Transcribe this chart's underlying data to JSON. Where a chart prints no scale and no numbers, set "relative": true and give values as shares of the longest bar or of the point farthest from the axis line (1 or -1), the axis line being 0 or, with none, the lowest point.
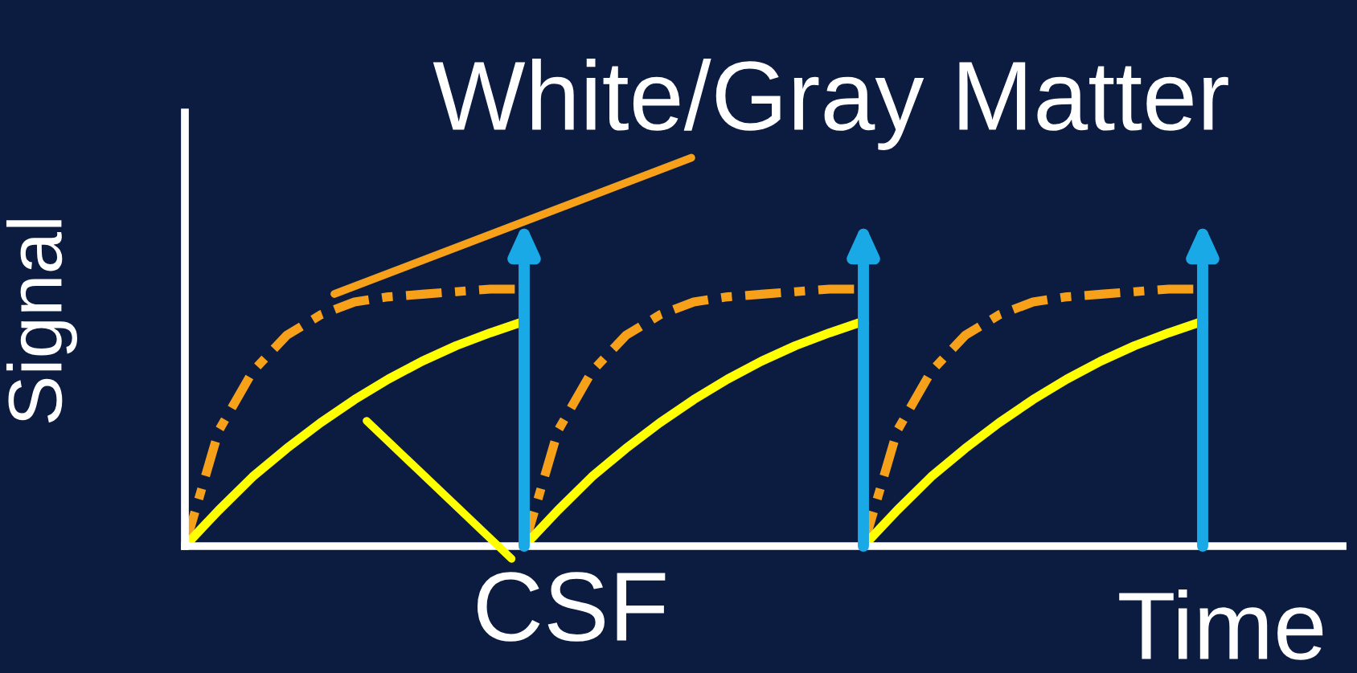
{
  "chart_data": {
    "type": "line",
    "relative": true,
    "xlabel": "Time",
    "ylabel": "Signal",
    "marker": "none",
    "categories": [
      null,
      null,
      null,
      null,
      null,
      null,
      null,
      null,
      null,
      null,
      null,
      null,
      null,
      null,
      null,
      null,
      null,
      null,
      null,
      null,
      null,
      null,
      null,
      null,
      null,
      null,
      null,
      null,
      null,
      null,
      null
    ],
    "series": [
      {
        "color": "#f7a019",
        "line_style": "dashed",
        "values": [
          0,
          0.45,
          0.68,
          0.82,
          0.9,
          0.95,
          0.97,
          0.98,
          0.99,
          1,
          1,
          null,
          null,
          null,
          null,
          null,
          null,
          null,
          null,
          null,
          null,
          null,
          null,
          null,
          null,
          null,
          null,
          null,
          null,
          null,
          null
        ]
      },
      {
        "color": "#f7a019",
        "line_style": "dashed",
        "values": [
          null,
          null,
          null,
          null,
          null,
          null,
          null,
          null,
          null,
          null,
          0,
          0.45,
          0.68,
          0.82,
          0.9,
          0.95,
          0.97,
          0.98,
          0.99,
          1,
          1,
          null,
          null,
          null,
          null,
          null,
          null,
          null,
          null,
          null,
          null
        ]
      },
      {
        "color": "#f7a019",
        "line_style": "dashed",
        "values": [
          null,
          null,
          null,
          null,
          null,
          null,
          null,
          null,
          null,
          null,
          null,
          null,
          null,
          null,
          null,
          null,
          null,
          null,
          null,
          null,
          0,
          0.45,
          0.68,
          0.82,
          0.9,
          0.95,
          0.97,
          0.98,
          0.99,
          1,
          1
        ]
      },
      {
        "color": "#ffff00",
        "line_style": "solid",
        "values": [
          0,
          0.14,
          0.27,
          0.38,
          0.48,
          0.57,
          0.65,
          0.72,
          0.78,
          0.83,
          0.875,
          null,
          null,
          null,
          null,
          null,
          null,
          null,
          null,
          null,
          null,
          null,
          null,
          null,
          null,
          null,
          null,
          null,
          null,
          null,
          null
        ]
      },
      {
        "color": "#ffff00",
        "line_style": "solid",
        "values": [
          null,
          null,
          null,
          null,
          null,
          null,
          null,
          null,
          null,
          null,
          0,
          0.14,
          0.27,
          0.38,
          0.48,
          0.57,
          0.65,
          0.72,
          0.78,
          0.83,
          0.875,
          null,
          null,
          null,
          null,
          null,
          null,
          null,
          null,
          null,
          null
        ]
      },
      {
        "color": "#ffff00",
        "line_style": "solid",
        "values": [
          null,
          null,
          null,
          null,
          null,
          null,
          null,
          null,
          null,
          null,
          null,
          null,
          null,
          null,
          null,
          null,
          null,
          null,
          null,
          null,
          0,
          0.14,
          0.27,
          0.38,
          0.48,
          0.57,
          0.65,
          0.72,
          0.78,
          0.83,
          0.875
        ]
      }
    ],
    "annotations": [
      "White/Gray Matter",
      "CSF"
    ]
  }
}
